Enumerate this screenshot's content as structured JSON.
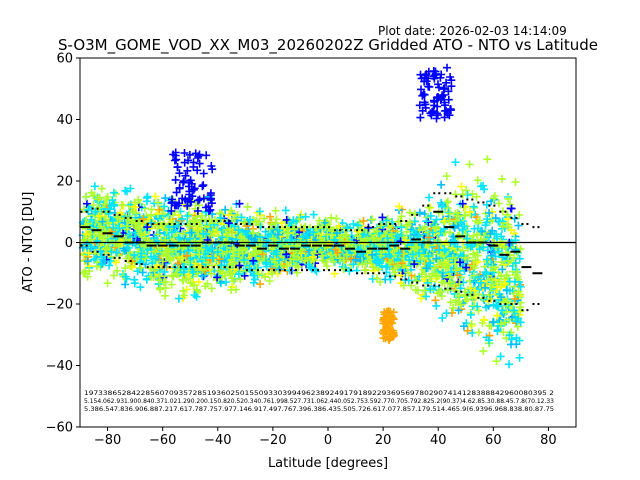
{
  "plot_date": "Plot date: 2026-02-03 14:14:09",
  "chart_data": {
    "type": "scatter",
    "title": "S-O3M_GOME_VOD_XX_M03_20260202Z Gridded ATO - NTO vs Latitude",
    "xlabel": "Latitude [degrees]",
    "ylabel": "ATO - NTO [DU]",
    "xlim": [
      -90,
      90
    ],
    "ylim": [
      -60,
      60
    ],
    "xticks": [
      -80,
      -60,
      -40,
      -20,
      0,
      20,
      40,
      60,
      80
    ],
    "yticks": [
      -60,
      -40,
      -20,
      0,
      20,
      40,
      60
    ],
    "grid": false,
    "zero_line": 0,
    "marker": "+",
    "series_colors": [
      "#0000ff",
      "#00e5ff",
      "#adff2f",
      "#ffff00",
      "#ffa500",
      "#00bfff"
    ],
    "scatter_envelope": {
      "lat": [
        -90,
        -80,
        -70,
        -60,
        -50,
        -40,
        -30,
        -20,
        -10,
        0,
        10,
        20,
        30,
        40,
        50,
        60,
        70
      ],
      "upper": [
        18,
        22,
        20,
        18,
        16,
        14,
        14,
        12,
        10,
        9,
        8,
        10,
        14,
        20,
        28,
        30,
        22
      ],
      "lower": [
        -14,
        -15,
        -18,
        -22,
        -20,
        -18,
        -16,
        -15,
        -12,
        -10,
        -10,
        -14,
        -18,
        -25,
        -35,
        -45,
        -50
      ]
    },
    "clusters": [
      {
        "color": "#0000ff",
        "lat": [
          -57,
          -42
        ],
        "value": [
          10,
          30
        ]
      },
      {
        "color": "#0000ff",
        "lat": [
          33,
          45
        ],
        "value": [
          40,
          57
        ]
      },
      {
        "color": "#ffa500",
        "lat": [
          20,
          24
        ],
        "value": [
          -32,
          -22
        ]
      }
    ],
    "bin_mean_lat": [
      -88,
      -84,
      -80,
      -76,
      -72,
      -68,
      -64,
      -60,
      -56,
      -52,
      -48,
      -44,
      -40,
      -36,
      -32,
      -28,
      -24,
      -20,
      -16,
      -12,
      -8,
      -4,
      0,
      4,
      8,
      12,
      16,
      20,
      24,
      28,
      32,
      36,
      40,
      44,
      48,
      52,
      56,
      60,
      64,
      68,
      72,
      76
    ],
    "bin_mean": [
      5,
      4,
      3,
      2,
      0,
      0,
      -1,
      -1,
      -1,
      -1,
      -1,
      0,
      0,
      0,
      -1,
      -1,
      -2,
      -1,
      -2,
      -2,
      -1,
      -1,
      -1,
      -1,
      -2,
      -3,
      -2,
      -2,
      -1,
      -2,
      1,
      0,
      10,
      5,
      2,
      0,
      0,
      -1,
      -4,
      -3,
      -8,
      -10
    ],
    "bin_upper": [
      10,
      11,
      10,
      9,
      8,
      7,
      6,
      6,
      6,
      6,
      6,
      7,
      7,
      7,
      6,
      6,
      5,
      5,
      5,
      5,
      5,
      5,
      5,
      4,
      4,
      4,
      5,
      6,
      6,
      7,
      9,
      12,
      16,
      16,
      15,
      14,
      13,
      12,
      10,
      8,
      6,
      5
    ],
    "bin_lower": [
      -1,
      -3,
      -4,
      -5,
      -6,
      -7,
      -8,
      -8,
      -8,
      -8,
      -8,
      -8,
      -8,
      -8,
      -8,
      -9,
      -9,
      -9,
      -9,
      -9,
      -9,
      -9,
      -9,
      -9,
      -9,
      -10,
      -10,
      -10,
      -11,
      -12,
      -13,
      -14,
      -14,
      -15,
      -16,
      -17,
      -18,
      -19,
      -20,
      -20,
      -22,
      -20
    ],
    "count_rows": [
      "19733865284228560709357285193602501550933039949623892491791892293695697802907414128388842960080395   2",
      "5.154.062.931.900.840.371.021.290.200.150.820.520.340.761.998.527.731.062.440.052.753.592.770.705.792.825.2(90.37)4.62.85.30.88.45.7.8(70.12.33",
      "5.386.547.836.906.887.217.617.787.757.977.146.917.497.767.396.386.435.505.726.617.077.857.179.514.465.9(6.9396.968.838.80.87.75"
    ]
  }
}
